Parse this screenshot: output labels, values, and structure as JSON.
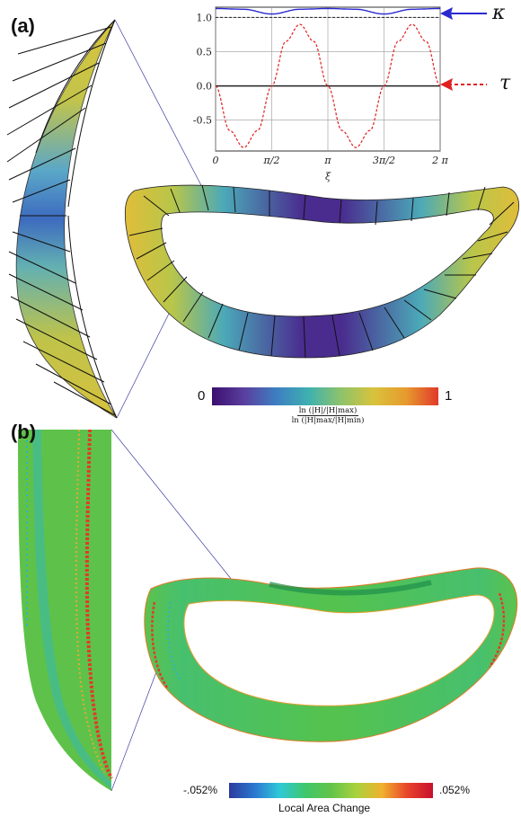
{
  "panels": {
    "a_label": "(a)",
    "b_label": "(b)"
  },
  "chart_data": {
    "type": "line",
    "xlabel": "ξ",
    "ylabel": "",
    "xlim": [
      0,
      6.2832
    ],
    "ylim": [
      -0.95,
      1.15
    ],
    "x_ticks": [
      {
        "value": 0,
        "label": "0"
      },
      {
        "value": 1.5708,
        "label": "π/2"
      },
      {
        "value": 3.1416,
        "label": "π"
      },
      {
        "value": 4.7124,
        "label": "3π/2"
      },
      {
        "value": 6.2832,
        "label": "2 π"
      }
    ],
    "y_ticks": [
      {
        "value": 1.0,
        "label": "1.0"
      },
      {
        "value": 0.5,
        "label": "0.5"
      },
      {
        "value": 0.0,
        "label": "0.0"
      },
      {
        "value": -0.5,
        "label": "-0.5"
      }
    ],
    "grid": true,
    "series": [
      {
        "name": "κ",
        "style": "solid",
        "color": "#2a2ad0",
        "x": [
          0,
          0.785,
          1.571,
          2.356,
          3.142,
          3.927,
          4.712,
          5.498,
          6.283
        ],
        "y": [
          1.13,
          1.12,
          1.05,
          1.12,
          1.13,
          1.12,
          1.05,
          1.12,
          1.13
        ]
      },
      {
        "name": "τ",
        "style": "dashed",
        "color": "#e02020",
        "x": [
          0,
          0.393,
          0.785,
          1.178,
          1.571,
          1.963,
          2.356,
          2.749,
          3.142,
          3.534,
          3.927,
          4.32,
          4.712,
          5.105,
          5.498,
          5.89,
          6.283
        ],
        "y": [
          0,
          -0.65,
          -0.9,
          -0.65,
          0,
          0.65,
          0.9,
          0.65,
          0,
          -0.65,
          -0.9,
          -0.65,
          0,
          0.65,
          0.9,
          0.65,
          0
        ]
      }
    ]
  },
  "legend": {
    "kappa_symbol": "κ",
    "tau_symbol": "τ"
  },
  "colorbar_a": {
    "min_label": "0",
    "max_label": "1",
    "formula_numerator": "ln (|H|/|H|max)",
    "formula_denominator": "ln (|H|max/|H|min)",
    "colors": [
      "#3b0f70",
      "#5a3f9e",
      "#3d7fc2",
      "#3fb1b0",
      "#8fc36a",
      "#d8c33c",
      "#e79a2e",
      "#e03a2a"
    ]
  },
  "colorbar_b": {
    "min_label": "-.052%",
    "max_label": ".052%",
    "caption": "Local Area Change",
    "colors": [
      "#2b3a9e",
      "#2b78d0",
      "#2ec9d8",
      "#3fc76a",
      "#62c44a",
      "#a9d23d",
      "#f0b12e",
      "#e8432a",
      "#c8102e"
    ]
  }
}
